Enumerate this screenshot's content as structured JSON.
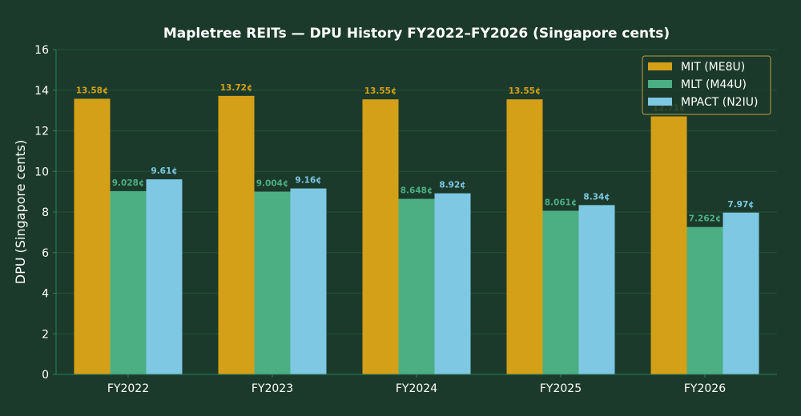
{
  "chart_data": {
    "type": "bar",
    "title": "Mapletree REITs — DPU History FY2022–FY2026 (Singapore cents)",
    "xlabel": "",
    "ylabel": "DPU (Singapore cents)",
    "ylim": [
      0,
      16
    ],
    "yticks": [
      0,
      2,
      4,
      6,
      8,
      10,
      12,
      14,
      16
    ],
    "categories": [
      "FY2022",
      "FY2023",
      "FY2024",
      "FY2025",
      "FY2026"
    ],
    "series": [
      {
        "name": "MIT (ME8U)",
        "color": "#d4a017",
        "values": [
          13.58,
          13.72,
          13.55,
          13.55,
          12.71
        ],
        "labels": [
          "13.58¢",
          "13.72¢",
          "13.55¢",
          "13.55¢",
          "12.71¢"
        ]
      },
      {
        "name": "MLT (M44U)",
        "color": "#4caf84",
        "values": [
          9.028,
          9.004,
          8.648,
          8.061,
          7.262
        ],
        "labels": [
          "9.028¢",
          "9.004¢",
          "8.648¢",
          "8.061¢",
          "7.262¢"
        ]
      },
      {
        "name": "MPACT (N2IU)",
        "color": "#7ec8e3",
        "values": [
          9.61,
          9.16,
          8.92,
          8.34,
          7.97
        ],
        "labels": [
          "9.61¢",
          "9.16¢",
          "8.92¢",
          "8.34¢",
          "7.97¢"
        ]
      }
    ],
    "grid": true,
    "legend_position": "top-right",
    "colors": {
      "background": "#1b3a2b",
      "grid": "#24503a",
      "axis": "#2e7d5b",
      "text": "#ffffff",
      "legend_border": "#b8a040"
    }
  }
}
